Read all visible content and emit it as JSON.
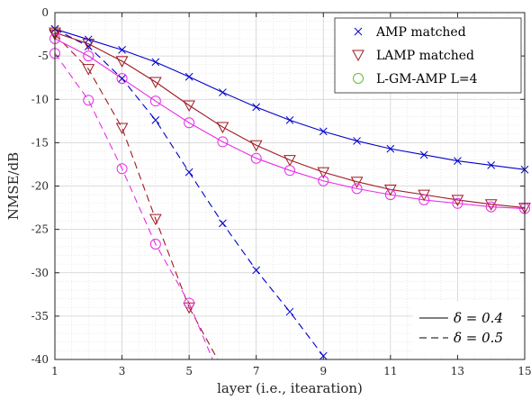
{
  "chart_data": {
    "type": "line",
    "title": "",
    "xlabel": "layer (i.e., itearation)",
    "ylabel": "NMSE/dB",
    "xlim": [
      1,
      15
    ],
    "ylim": [
      -40,
      0
    ],
    "xticks": [
      1,
      3,
      5,
      7,
      9,
      11,
      13,
      15
    ],
    "yticks": [
      0,
      -5,
      -10,
      -15,
      -20,
      -25,
      -30,
      -35,
      -40
    ],
    "xticklabels": [
      "1",
      "3",
      "5",
      "7",
      "9",
      "11",
      "13",
      "15"
    ],
    "yticklabels": [
      "0",
      "-5",
      "-10",
      "-15",
      "-20",
      "-25",
      "-30",
      "-35",
      "-40"
    ],
    "grid": true,
    "minor_grid": true,
    "legend_placement": "top-right",
    "legend": [
      {
        "label": "AMP matched",
        "marker": "x",
        "color": "#0000cc"
      },
      {
        "label": "LAMP matched",
        "marker": "triangle-down",
        "color": "#a01822"
      },
      {
        "label": "L-GM-AMP L=4",
        "marker": "circle",
        "color": "#66bb33"
      }
    ],
    "style_legend": [
      {
        "label": "δ = 0.4",
        "linestyle": "solid"
      },
      {
        "label": "δ = 0.5",
        "linestyle": "dashed"
      }
    ],
    "series": [
      {
        "group": "AMP matched",
        "delta": "0.4",
        "color": "#0000cc",
        "dash": "solid",
        "marker": "x",
        "x": [
          1,
          2,
          3,
          4,
          5,
          6,
          7,
          8,
          9,
          10,
          11,
          12,
          13,
          14,
          15
        ],
        "y": [
          -1.9,
          -3.1,
          -4.3,
          -5.7,
          -7.4,
          -9.2,
          -10.9,
          -12.4,
          -13.7,
          -14.8,
          -15.7,
          -16.4,
          -17.1,
          -17.6,
          -18.1
        ]
      },
      {
        "group": "AMP matched",
        "delta": "0.5",
        "color": "#0000cc",
        "dash": "dashed",
        "marker": "x",
        "x": [
          1,
          2,
          3,
          4,
          5,
          6,
          7,
          8,
          9
        ],
        "y": [
          -1.9,
          -3.9,
          -7.6,
          -12.4,
          -18.4,
          -24.3,
          -29.7,
          -34.5,
          -39.6
        ]
      },
      {
        "group": "LAMP matched",
        "delta": "0.4",
        "color": "#a01822",
        "dash": "solid",
        "marker": "triangle-down",
        "x": [
          1,
          2,
          3,
          4,
          5,
          6,
          7,
          8,
          9,
          10,
          11,
          12,
          13,
          14,
          15
        ],
        "y": [
          -2.3,
          -3.6,
          -5.6,
          -8.0,
          -10.7,
          -13.2,
          -15.3,
          -17.0,
          -18.4,
          -19.5,
          -20.4,
          -21.0,
          -21.6,
          -22.1,
          -22.5
        ]
      },
      {
        "group": "LAMP matched",
        "delta": "0.5",
        "color": "#a01822",
        "dash": "dashed",
        "marker": "triangle-down",
        "x": [
          1,
          2,
          3,
          4,
          5
        ],
        "y": [
          -2.5,
          -6.5,
          -13.3,
          -23.8,
          -34.0
        ]
      },
      {
        "group": "L-GM-AMP L=4",
        "delta": "0.4",
        "color": "#e62ee6",
        "dash": "solid",
        "marker": "circle",
        "x": [
          1,
          2,
          3,
          4,
          5,
          6,
          7,
          8,
          9,
          10,
          11,
          12,
          13,
          14,
          15
        ],
        "y": [
          -3.0,
          -5.0,
          -7.6,
          -10.2,
          -12.7,
          -14.9,
          -16.8,
          -18.2,
          -19.4,
          -20.3,
          -21.0,
          -21.6,
          -22.0,
          -22.4,
          -22.6
        ]
      },
      {
        "group": "L-GM-AMP L=4",
        "delta": "0.5",
        "color": "#e62ee6",
        "dash": "dashed",
        "marker": "circle",
        "x": [
          1,
          2,
          3,
          4,
          5
        ],
        "y": [
          -4.7,
          -10.1,
          -18.0,
          -26.7,
          -33.5
        ]
      }
    ],
    "extended_lines": [
      {
        "delta": "0.5",
        "group": "LAMP matched",
        "color": "#a01822",
        "from": [
          5,
          -34.0
        ],
        "to": [
          5.85,
          -40
        ]
      },
      {
        "delta": "0.5",
        "group": "L-GM-AMP L=4",
        "color": "#e62ee6",
        "from": [
          5,
          -33.5
        ],
        "to": [
          5.7,
          -40
        ]
      }
    ]
  }
}
